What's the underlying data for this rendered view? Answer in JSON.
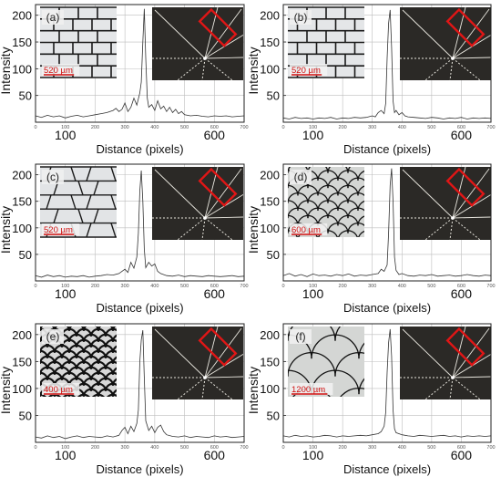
{
  "chart_data": [
    {
      "type": "line",
      "panel_label": "(a)",
      "scale_label": "520 µm",
      "inset": "rectangular-tiles-aligned",
      "xlabel": "Distance (pixels)",
      "ylabel": "Intensity",
      "xlim": [
        0,
        700
      ],
      "ylim": [
        0,
        220
      ],
      "x_ticks_major": [
        100,
        600
      ],
      "x_ticks_minor": [
        0,
        100,
        200,
        300,
        400,
        500,
        600,
        700
      ],
      "y_ticks": [
        50,
        100,
        150,
        200
      ],
      "grid": true,
      "peak": {
        "x": 365,
        "y": 212
      },
      "x": [
        0,
        20,
        40,
        60,
        80,
        100,
        120,
        140,
        160,
        180,
        200,
        220,
        240,
        260,
        270,
        280,
        290,
        300,
        310,
        320,
        330,
        340,
        350,
        355,
        360,
        365,
        370,
        375,
        380,
        390,
        400,
        410,
        420,
        430,
        440,
        450,
        460,
        470,
        480,
        490,
        500,
        520,
        540,
        560,
        580,
        600,
        620,
        640,
        660,
        680,
        700
      ],
      "y": [
        12,
        9,
        13,
        10,
        12,
        8,
        11,
        13,
        10,
        12,
        14,
        16,
        18,
        22,
        26,
        20,
        24,
        36,
        20,
        28,
        45,
        32,
        55,
        75,
        150,
        212,
        120,
        45,
        28,
        33,
        22,
        40,
        25,
        30,
        20,
        28,
        18,
        24,
        16,
        20,
        14,
        12,
        13,
        11,
        10,
        12,
        11,
        12,
        10,
        11,
        12
      ]
    },
    {
      "type": "line",
      "panel_label": "(b)",
      "scale_label": "520 µm",
      "inset": "rectangular-tiles-staggered",
      "xlabel": "Distance (pixels)",
      "ylabel": "Intensity",
      "xlim": [
        0,
        700
      ],
      "ylim": [
        0,
        220
      ],
      "x_ticks_major": [
        100,
        600
      ],
      "x_ticks_minor": [
        0,
        100,
        200,
        300,
        400,
        500,
        600,
        700
      ],
      "y_ticks": [
        50,
        100,
        150,
        200
      ],
      "grid": true,
      "peak": {
        "x": 360,
        "y": 210
      },
      "x": [
        0,
        20,
        40,
        60,
        80,
        100,
        120,
        140,
        160,
        180,
        200,
        220,
        240,
        260,
        280,
        300,
        310,
        320,
        330,
        340,
        345,
        350,
        355,
        360,
        365,
        370,
        375,
        380,
        390,
        400,
        410,
        420,
        440,
        460,
        480,
        500,
        520,
        540,
        560,
        580,
        600,
        620,
        640,
        660,
        680,
        700
      ],
      "y": [
        8,
        6,
        9,
        7,
        8,
        6,
        8,
        7,
        9,
        6,
        8,
        7,
        9,
        8,
        9,
        12,
        10,
        18,
        22,
        16,
        35,
        120,
        185,
        210,
        140,
        40,
        18,
        22,
        14,
        18,
        12,
        10,
        9,
        8,
        7,
        9,
        8,
        6,
        8,
        7,
        9,
        6,
        8,
        7,
        8,
        7
      ]
    },
    {
      "type": "line",
      "panel_label": "(c)",
      "scale_label": "520 µm",
      "inset": "irregular-trapezoid-tiles",
      "xlabel": "Distance (pixels)",
      "ylabel": "Intensity",
      "xlim": [
        0,
        700
      ],
      "ylim": [
        0,
        220
      ],
      "x_ticks_major": [
        100,
        600
      ],
      "x_ticks_minor": [
        0,
        100,
        200,
        300,
        400,
        500,
        600,
        700
      ],
      "y_ticks": [
        50,
        100,
        150,
        200
      ],
      "grid": true,
      "peak": {
        "x": 355,
        "y": 208
      },
      "x": [
        0,
        20,
        40,
        60,
        80,
        100,
        120,
        140,
        160,
        180,
        200,
        220,
        240,
        260,
        280,
        300,
        310,
        320,
        330,
        340,
        345,
        350,
        355,
        360,
        365,
        370,
        380,
        390,
        400,
        410,
        420,
        440,
        460,
        480,
        500,
        520,
        540,
        560,
        580,
        600,
        620,
        640,
        660,
        680,
        700
      ],
      "y": [
        10,
        7,
        11,
        8,
        10,
        7,
        9,
        8,
        10,
        7,
        9,
        10,
        12,
        11,
        14,
        22,
        16,
        35,
        24,
        45,
        90,
        170,
        208,
        150,
        60,
        25,
        35,
        28,
        32,
        18,
        14,
        10,
        9,
        11,
        8,
        10,
        9,
        8,
        10,
        9,
        8,
        9,
        10,
        8,
        9
      ]
    },
    {
      "type": "line",
      "panel_label": "(d)",
      "scale_label": "600 µm",
      "inset": "scale-pattern-wide",
      "xlabel": "Distance (pixels)",
      "ylabel": "Intensity",
      "xlim": [
        0,
        700
      ],
      "ylim": [
        0,
        220
      ],
      "x_ticks_major": [
        100,
        600
      ],
      "x_ticks_minor": [
        0,
        100,
        200,
        300,
        400,
        500,
        600,
        700
      ],
      "y_ticks": [
        50,
        100,
        150,
        200
      ],
      "grid": true,
      "peak": {
        "x": 365,
        "y": 212
      },
      "x": [
        0,
        20,
        40,
        60,
        80,
        100,
        120,
        140,
        160,
        180,
        200,
        220,
        240,
        260,
        280,
        300,
        320,
        330,
        340,
        350,
        355,
        360,
        365,
        370,
        375,
        380,
        390,
        400,
        420,
        440,
        460,
        480,
        500,
        520,
        540,
        560,
        580,
        600,
        620,
        640,
        660,
        680,
        700
      ],
      "y": [
        10,
        14,
        9,
        12,
        8,
        13,
        10,
        11,
        9,
        12,
        10,
        13,
        9,
        11,
        10,
        12,
        14,
        22,
        18,
        30,
        90,
        180,
        212,
        150,
        45,
        20,
        12,
        14,
        10,
        9,
        11,
        10,
        12,
        9,
        10,
        11,
        9,
        10,
        12,
        10,
        9,
        11,
        10
      ]
    },
    {
      "type": "line",
      "panel_label": "(e)",
      "scale_label": "400 µm",
      "inset": "scale-pattern-dense",
      "xlabel": "Distance (pixels)",
      "ylabel": "Intensity",
      "xlim": [
        0,
        700
      ],
      "ylim": [
        0,
        220
      ],
      "x_ticks_major": [
        100,
        600
      ],
      "x_ticks_minor": [
        0,
        100,
        200,
        300,
        400,
        500,
        600,
        700
      ],
      "y_ticks": [
        50,
        100,
        150,
        200
      ],
      "grid": true,
      "peak": {
        "x": 360,
        "y": 208
      },
      "x": [
        0,
        20,
        40,
        60,
        80,
        100,
        120,
        140,
        160,
        180,
        200,
        220,
        240,
        260,
        280,
        290,
        300,
        310,
        320,
        330,
        340,
        345,
        350,
        355,
        360,
        365,
        370,
        380,
        390,
        400,
        410,
        420,
        430,
        440,
        460,
        480,
        500,
        520,
        540,
        560,
        580,
        600,
        620,
        640,
        660,
        680,
        700
      ],
      "y": [
        10,
        8,
        12,
        9,
        11,
        7,
        10,
        12,
        9,
        11,
        10,
        9,
        12,
        10,
        13,
        22,
        28,
        16,
        30,
        20,
        35,
        60,
        150,
        190,
        208,
        120,
        40,
        22,
        30,
        18,
        28,
        32,
        20,
        14,
        11,
        10,
        12,
        9,
        11,
        10,
        9,
        12,
        10,
        11,
        9,
        10,
        11
      ]
    },
    {
      "type": "line",
      "panel_label": "(f)",
      "scale_label": "1200 µm",
      "inset": "scale-pattern-large",
      "xlabel": "Distance (pixels)",
      "ylabel": "Intensity",
      "xlim": [
        0,
        700
      ],
      "ylim": [
        0,
        220
      ],
      "x_ticks_major": [
        100,
        600
      ],
      "x_ticks_minor": [
        0,
        100,
        200,
        300,
        400,
        500,
        600,
        700
      ],
      "y_ticks": [
        50,
        100,
        150,
        200
      ],
      "grid": true,
      "peak": {
        "x": 360,
        "y": 210
      },
      "x": [
        0,
        20,
        40,
        60,
        80,
        100,
        120,
        140,
        160,
        180,
        200,
        220,
        240,
        260,
        280,
        300,
        320,
        330,
        340,
        345,
        350,
        355,
        360,
        365,
        370,
        375,
        380,
        400,
        420,
        440,
        460,
        480,
        500,
        520,
        540,
        560,
        580,
        600,
        620,
        640,
        660,
        680,
        700
      ],
      "y": [
        12,
        10,
        13,
        11,
        12,
        10,
        11,
        13,
        12,
        10,
        12,
        11,
        12,
        13,
        12,
        14,
        16,
        20,
        30,
        55,
        130,
        185,
        210,
        160,
        60,
        25,
        18,
        14,
        12,
        11,
        13,
        12,
        11,
        12,
        13,
        11,
        12,
        10,
        12,
        11,
        12,
        11,
        12
      ]
    }
  ]
}
